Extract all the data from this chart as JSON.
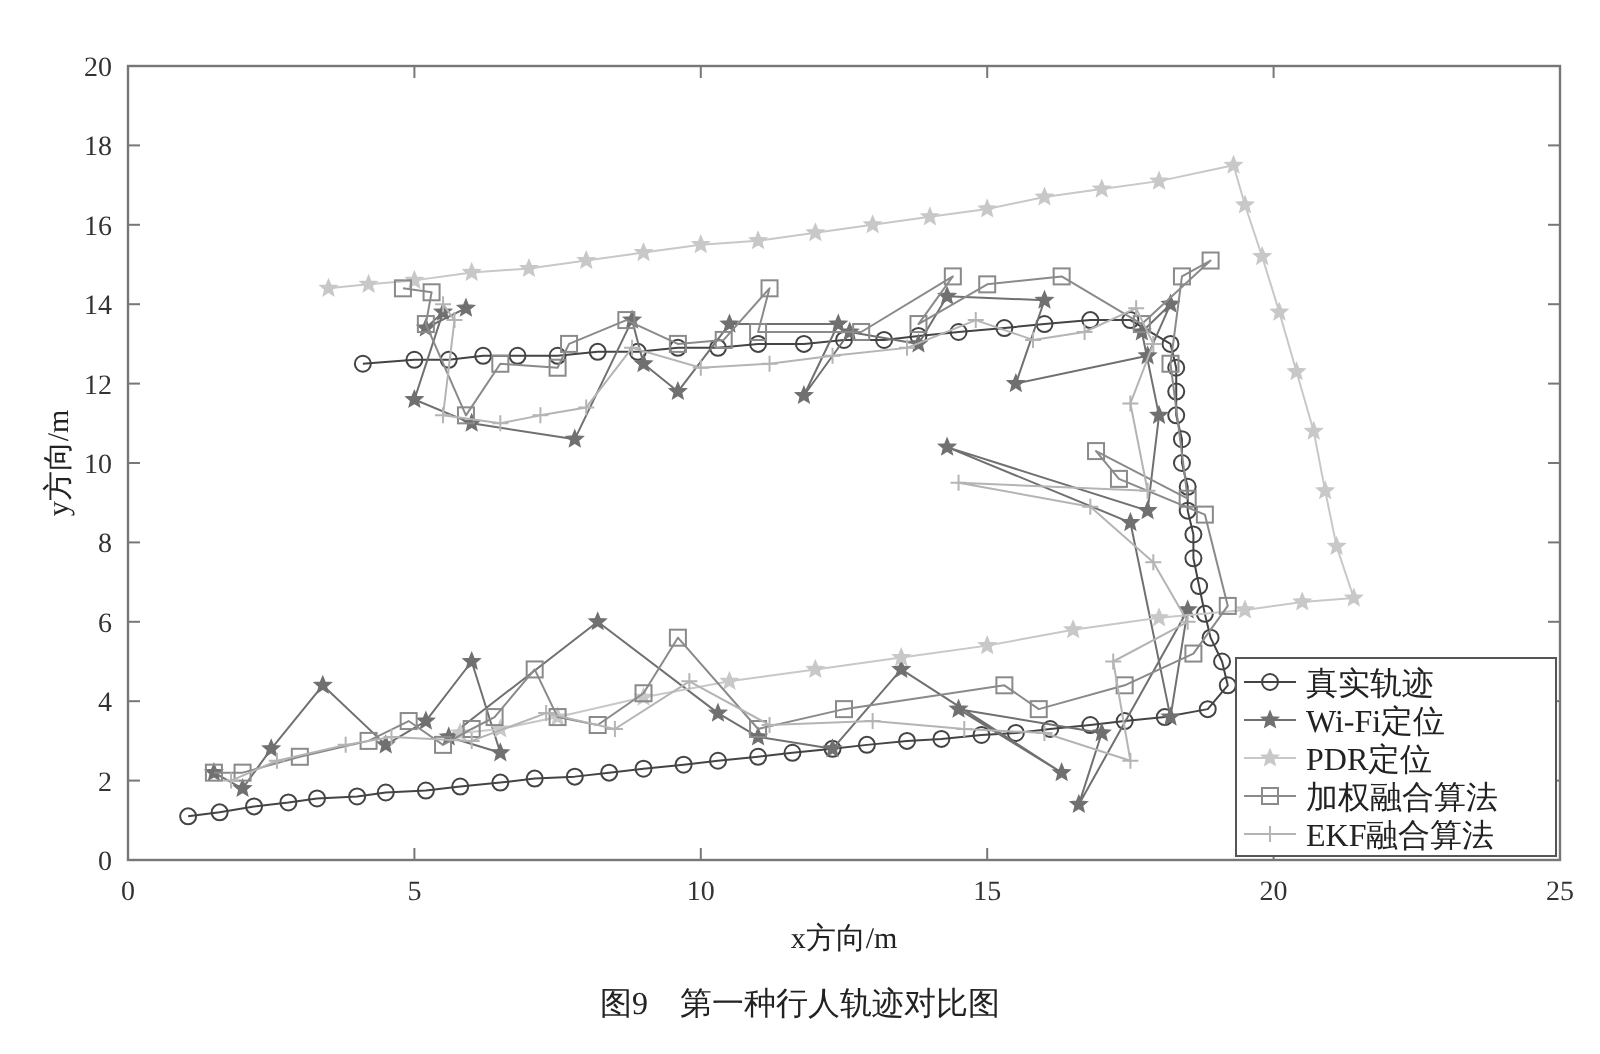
{
  "chart_data": {
    "type": "line",
    "xlabel": "x方向/m",
    "ylabel": "y方向/m",
    "annotations": [
      "图9　第一种行人轨迹对比图"
    ],
    "xlim": [
      0,
      25
    ],
    "ylim": [
      0,
      20
    ],
    "xticks": [
      0,
      5,
      10,
      15,
      20,
      25
    ],
    "yticks": [
      0,
      2,
      4,
      6,
      8,
      10,
      12,
      14,
      16,
      18,
      20
    ],
    "grid": false,
    "legend": "bottom right",
    "line_style": "solid",
    "series": [
      {
        "name": "真实轨迹",
        "color": "#444444",
        "marker": "circle",
        "x": [
          1.05,
          1.6,
          2.2,
          2.8,
          3.3,
          4.0,
          4.5,
          5.2,
          5.8,
          6.5,
          7.1,
          7.8,
          8.4,
          9.0,
          9.7,
          10.3,
          11.0,
          11.6,
          12.3,
          12.9,
          13.6,
          14.2,
          14.9,
          15.5,
          16.1,
          16.8,
          17.4,
          18.1,
          18.85,
          19.2,
          19.1,
          18.9,
          18.8,
          18.7,
          18.6,
          18.6,
          18.5,
          18.5,
          18.4,
          18.4,
          18.3,
          18.3,
          18.3,
          18.2,
          17.5,
          16.8,
          16.0,
          15.3,
          14.5,
          13.8,
          13.2,
          12.5,
          11.8,
          11.0,
          10.3,
          9.6,
          8.9,
          8.2,
          7.5,
          6.8,
          6.2,
          5.6,
          5.0,
          4.1
        ],
        "values": [
          1.1,
          1.2,
          1.35,
          1.45,
          1.55,
          1.6,
          1.7,
          1.75,
          1.85,
          1.95,
          2.05,
          2.1,
          2.2,
          2.3,
          2.4,
          2.5,
          2.6,
          2.7,
          2.8,
          2.9,
          3.0,
          3.05,
          3.15,
          3.2,
          3.3,
          3.4,
          3.5,
          3.6,
          3.8,
          4.4,
          5.0,
          5.6,
          6.2,
          6.9,
          7.6,
          8.2,
          8.8,
          9.4,
          10.0,
          10.6,
          11.2,
          11.8,
          12.4,
          13.0,
          13.6,
          13.6,
          13.5,
          13.4,
          13.3,
          13.2,
          13.1,
          13.1,
          13.0,
          13.0,
          12.9,
          12.9,
          12.8,
          12.8,
          12.7,
          12.7,
          12.7,
          12.6,
          12.6,
          12.5
        ]
      },
      {
        "name": "Wi-Fi定位",
        "color": "#707070",
        "marker": "star",
        "x": [
          1.5,
          2.0,
          2.5,
          3.4,
          4.5,
          5.2,
          6.0,
          6.5,
          5.6,
          8.2,
          10.3,
          11.0,
          12.3,
          13.5,
          16.3,
          14.5,
          17.0,
          16.6,
          18.5,
          18.2,
          17.5,
          14.3,
          17.8,
          18.0,
          17.7,
          18.2,
          17.8,
          15.5,
          16.0,
          14.3,
          13.8,
          12.6,
          11.8,
          12.4,
          10.5,
          9.6,
          9.0,
          8.8,
          7.8,
          6.0,
          5.0,
          5.5,
          5.2,
          5.9
        ],
        "values": [
          2.2,
          1.8,
          2.8,
          4.4,
          2.9,
          3.5,
          5.0,
          2.7,
          3.1,
          6.0,
          3.7,
          3.1,
          2.8,
          4.8,
          2.2,
          3.8,
          3.2,
          1.4,
          6.3,
          3.6,
          8.5,
          10.4,
          8.8,
          11.2,
          13.3,
          14.0,
          12.7,
          12.0,
          14.1,
          14.2,
          13.0,
          13.3,
          11.7,
          13.5,
          13.5,
          11.8,
          12.5,
          13.6,
          10.6,
          11.0,
          11.6,
          13.8,
          13.4,
          13.9
        ]
      },
      {
        "name": "PDR定位",
        "color": "#c8c8c8",
        "marker": "star",
        "x": [
          3.5,
          4.2,
          5.0,
          6.0,
          7.0,
          8.0,
          9.0,
          10.0,
          11.0,
          12.0,
          13.0,
          14.0,
          15.0,
          16.0,
          17.0,
          18.0,
          19.3,
          19.5,
          19.8,
          20.1,
          20.4,
          20.7,
          20.9,
          21.1,
          21.4,
          20.5,
          19.5,
          18.0,
          16.5,
          15.0,
          13.5,
          12.0,
          10.5,
          9.0,
          7.5,
          6.5,
          5.8
        ],
        "values": [
          14.4,
          14.5,
          14.6,
          14.8,
          14.9,
          15.1,
          15.3,
          15.5,
          15.6,
          15.8,
          16.0,
          16.2,
          16.4,
          16.7,
          16.9,
          17.1,
          17.5,
          16.5,
          15.2,
          13.8,
          12.3,
          10.8,
          9.3,
          7.9,
          6.6,
          6.5,
          6.3,
          6.1,
          5.8,
          5.4,
          5.1,
          4.8,
          4.5,
          4.1,
          3.6,
          3.3,
          3.2
        ]
      },
      {
        "name": "加权融合算法",
        "color": "#8a8a8a",
        "marker": "square",
        "x": [
          1.5,
          2.0,
          3.0,
          4.2,
          4.9,
          5.5,
          6.0,
          6.4,
          7.1,
          7.5,
          8.2,
          9.0,
          9.6,
          11.0,
          12.5,
          15.3,
          15.9,
          17.4,
          18.6,
          19.2,
          18.8,
          17.3,
          16.9,
          18.5,
          18.2,
          18.4,
          18.9,
          17.7,
          16.3,
          15.0,
          13.8,
          14.4,
          12.8,
          11.0,
          11.2,
          10.4,
          9.6,
          8.7,
          7.7,
          7.5,
          6.5,
          5.9,
          5.2,
          5.3,
          4.8
        ],
        "values": [
          2.2,
          2.2,
          2.6,
          3.0,
          3.5,
          2.9,
          3.3,
          3.6,
          4.8,
          3.6,
          3.4,
          4.2,
          5.6,
          3.3,
          3.8,
          4.4,
          3.8,
          4.4,
          5.2,
          6.4,
          8.7,
          9.6,
          10.3,
          9.1,
          12.5,
          14.7,
          15.1,
          13.5,
          14.7,
          14.5,
          13.5,
          14.7,
          13.3,
          13.3,
          14.4,
          13.1,
          13.0,
          13.6,
          13.0,
          12.4,
          12.5,
          11.2,
          13.5,
          14.3,
          14.4
        ]
      },
      {
        "name": "EKF融合算法",
        "color": "#b4b4b4",
        "marker": "cross",
        "x": [
          1.8,
          2.6,
          3.8,
          4.6,
          6.0,
          7.3,
          8.5,
          9.8,
          11.2,
          13.0,
          14.6,
          16.0,
          17.5,
          17.2,
          18.5,
          17.9,
          16.8,
          14.5,
          17.8,
          17.5,
          17.9,
          17.6,
          16.7,
          15.8,
          14.8,
          13.6,
          12.3,
          11.2,
          10.0,
          8.8,
          8.0,
          7.2,
          6.5,
          5.5,
          5.7,
          5.5
        ],
        "values": [
          2.0,
          2.5,
          2.9,
          3.1,
          3.0,
          3.7,
          3.3,
          4.5,
          3.4,
          3.5,
          3.3,
          3.2,
          2.5,
          5.0,
          6.0,
          7.5,
          8.9,
          9.5,
          9.3,
          11.5,
          13.0,
          13.9,
          13.3,
          13.1,
          13.6,
          12.9,
          12.7,
          12.5,
          12.4,
          12.9,
          11.4,
          11.2,
          11.0,
          11.2,
          13.6,
          14.0
        ]
      }
    ]
  }
}
